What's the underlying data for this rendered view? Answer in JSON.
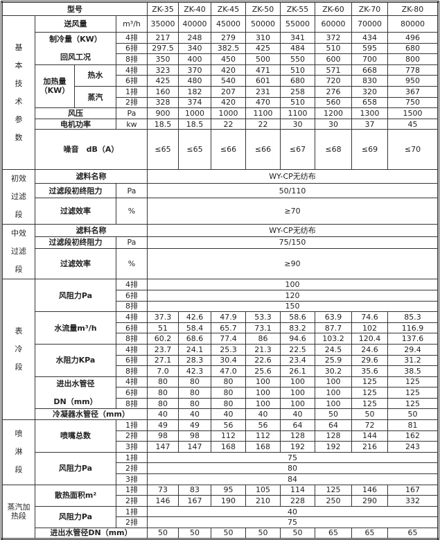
{
  "table": {
    "rows": [
      [
        {
          "t": "型号",
          "cs": 4,
          "b": 1
        },
        {
          "t": "ZK-35"
        },
        {
          "t": "ZK-40"
        },
        {
          "t": "ZK-45"
        },
        {
          "t": "ZK-50"
        },
        {
          "t": "ZK-55"
        },
        {
          "t": "ZK-60"
        },
        {
          "t": "ZK-70"
        },
        {
          "t": "ZK-80"
        }
      ],
      [
        {
          "t": "基\n本\n技\n术\n参\n数",
          "rs": 11,
          "sec": 1
        },
        {
          "t": "送风量",
          "cs": 2,
          "b": 1
        },
        {
          "t": "m³/h"
        },
        {
          "t": "35000"
        },
        {
          "t": "40000"
        },
        {
          "t": "45000"
        },
        {
          "t": "50000"
        },
        {
          "t": "55000"
        },
        {
          "t": "60000"
        },
        {
          "t": "70000"
        },
        {
          "t": "80000"
        }
      ],
      [
        {
          "t": "制冷量（KW）\n\n回风工况",
          "rs": 3,
          "cs": 2,
          "b": 1
        },
        {
          "t": "4排"
        },
        {
          "t": "217"
        },
        {
          "t": "248"
        },
        {
          "t": "279"
        },
        {
          "t": "310"
        },
        {
          "t": "341"
        },
        {
          "t": "372"
        },
        {
          "t": "434"
        },
        {
          "t": "496"
        }
      ],
      [
        {
          "t": "6排"
        },
        {
          "t": "297.5"
        },
        {
          "t": "340"
        },
        {
          "t": "382.5"
        },
        {
          "t": "425"
        },
        {
          "t": "484"
        },
        {
          "t": "510"
        },
        {
          "t": "595"
        },
        {
          "t": "680"
        }
      ],
      [
        {
          "t": "8排"
        },
        {
          "t": "350"
        },
        {
          "t": "400"
        },
        {
          "t": "450"
        },
        {
          "t": "500"
        },
        {
          "t": "550"
        },
        {
          "t": "600"
        },
        {
          "t": "700"
        },
        {
          "t": "800"
        }
      ],
      [
        {
          "t": "加热量\n（KW）",
          "rs": 4,
          "b": 1
        },
        {
          "t": "热水",
          "rs": 2,
          "b": 1
        },
        {
          "t": "4排"
        },
        {
          "t": "323"
        },
        {
          "t": "370"
        },
        {
          "t": "420"
        },
        {
          "t": "471"
        },
        {
          "t": "510"
        },
        {
          "t": "571"
        },
        {
          "t": "668"
        },
        {
          "t": "778"
        }
      ],
      [
        {
          "t": "6排"
        },
        {
          "t": "425"
        },
        {
          "t": "480"
        },
        {
          "t": "540"
        },
        {
          "t": "601"
        },
        {
          "t": "680"
        },
        {
          "t": "720"
        },
        {
          "t": "830"
        },
        {
          "t": "950"
        }
      ],
      [
        {
          "t": "蒸汽",
          "rs": 2,
          "b": 1
        },
        {
          "t": "1排"
        },
        {
          "t": "160"
        },
        {
          "t": "182"
        },
        {
          "t": "207"
        },
        {
          "t": "231"
        },
        {
          "t": "258"
        },
        {
          "t": "276"
        },
        {
          "t": "320"
        },
        {
          "t": "367"
        }
      ],
      [
        {
          "t": "2排"
        },
        {
          "t": "328"
        },
        {
          "t": "374"
        },
        {
          "t": "420"
        },
        {
          "t": "470"
        },
        {
          "t": "510"
        },
        {
          "t": "560"
        },
        {
          "t": "658"
        },
        {
          "t": "750"
        }
      ],
      [
        {
          "t": "风压",
          "cs": 2,
          "b": 1
        },
        {
          "t": "Pa"
        },
        {
          "t": "900"
        },
        {
          "t": "1000"
        },
        {
          "t": "1000"
        },
        {
          "t": "1100"
        },
        {
          "t": "1100"
        },
        {
          "t": "1200"
        },
        {
          "t": "1300"
        },
        {
          "t": "1500"
        }
      ],
      [
        {
          "t": "电机功率",
          "cs": 2,
          "b": 1
        },
        {
          "t": "kw"
        },
        {
          "t": "18.5"
        },
        {
          "t": "18.5"
        },
        {
          "t": "22"
        },
        {
          "t": "22"
        },
        {
          "t": "30"
        },
        {
          "t": "30"
        },
        {
          "t": "37"
        },
        {
          "t": "45"
        }
      ],
      [
        {
          "t": "噪音　dB（A）",
          "cs": 3,
          "b": 1
        },
        {
          "t": "≤65"
        },
        {
          "t": "≤65"
        },
        {
          "t": "≤66"
        },
        {
          "t": "≤66"
        },
        {
          "t": "≤67"
        },
        {
          "t": "≤68"
        },
        {
          "t": "≤69"
        },
        {
          "t": "≤70"
        }
      ],
      [
        {
          "t": "初效\n过滤\n段",
          "rs": 3,
          "sec": 1
        },
        {
          "t": "滤料名称",
          "cs": 3,
          "b": 1
        },
        {
          "t": "WY-CP无纺布",
          "cs": 8
        }
      ],
      [
        {
          "t": "过滤段初终阻力",
          "cs": 2,
          "b": 1
        },
        {
          "t": "Pa"
        },
        {
          "t": "50/110",
          "cs": 8
        }
      ],
      [
        {
          "t": "过滤效率",
          "cs": 2,
          "b": 1
        },
        {
          "t": "%"
        },
        {
          "t": "≥70",
          "cs": 8
        }
      ],
      [
        {
          "t": "中效\n过滤\n段",
          "rs": 3,
          "sec": 1
        },
        {
          "t": "滤料名称",
          "cs": 3,
          "b": 1
        },
        {
          "t": "WY-CP无纺布",
          "cs": 8
        }
      ],
      [
        {
          "t": "过滤段初终阻力",
          "cs": 2,
          "b": 1
        },
        {
          "t": "Pa"
        },
        {
          "t": "75/150",
          "cs": 8
        }
      ],
      [
        {
          "t": "过滤效率",
          "cs": 2,
          "b": 1
        },
        {
          "t": "%"
        },
        {
          "t": "≥90",
          "cs": 8
        }
      ],
      [
        {
          "t": "表\n冷\n段",
          "rs": 13,
          "sec": 1
        },
        {
          "t": "风阻力Pa",
          "rs": 3,
          "cs": 2,
          "b": 1
        },
        {
          "t": "4排"
        },
        {
          "t": "100",
          "cs": 8
        }
      ],
      [
        {
          "t": "6排"
        },
        {
          "t": "120",
          "cs": 8
        }
      ],
      [
        {
          "t": "8排"
        },
        {
          "t": "150",
          "cs": 8
        }
      ],
      [
        {
          "t": "水流量m³/h",
          "rs": 3,
          "cs": 2,
          "b": 1
        },
        {
          "t": "4排"
        },
        {
          "t": "37.3"
        },
        {
          "t": "42.6"
        },
        {
          "t": "47.9"
        },
        {
          "t": "53.3"
        },
        {
          "t": "58.6"
        },
        {
          "t": "63.9"
        },
        {
          "t": "74.6"
        },
        {
          "t": "85.3"
        }
      ],
      [
        {
          "t": "6排"
        },
        {
          "t": "51"
        },
        {
          "t": "58.4"
        },
        {
          "t": "65.7"
        },
        {
          "t": "73.1"
        },
        {
          "t": "83.2"
        },
        {
          "t": "87.7"
        },
        {
          "t": "102"
        },
        {
          "t": "116.9"
        }
      ],
      [
        {
          "t": "8排"
        },
        {
          "t": "60.2"
        },
        {
          "t": "68.6"
        },
        {
          "t": "77.4"
        },
        {
          "t": "86"
        },
        {
          "t": "94.6"
        },
        {
          "t": "103.2"
        },
        {
          "t": "120.4"
        },
        {
          "t": "137.6"
        }
      ],
      [
        {
          "t": "水阻力KPa",
          "rs": 3,
          "cs": 2,
          "b": 1
        },
        {
          "t": "4排"
        },
        {
          "t": "23.7"
        },
        {
          "t": "24.1"
        },
        {
          "t": "25.3"
        },
        {
          "t": "21.3"
        },
        {
          "t": "22.5"
        },
        {
          "t": "24.5"
        },
        {
          "t": "24.6"
        },
        {
          "t": "29.4"
        }
      ],
      [
        {
          "t": "6排"
        },
        {
          "t": "27.1"
        },
        {
          "t": "28.3"
        },
        {
          "t": "30.4"
        },
        {
          "t": "22.6"
        },
        {
          "t": "23.4"
        },
        {
          "t": "25.9"
        },
        {
          "t": "29.6"
        },
        {
          "t": "31.2"
        }
      ],
      [
        {
          "t": "8排"
        },
        {
          "t": "7.0"
        },
        {
          "t": "42.3"
        },
        {
          "t": "47.0"
        },
        {
          "t": "25.6"
        },
        {
          "t": "26.1"
        },
        {
          "t": "30.2"
        },
        {
          "t": "35.6"
        },
        {
          "t": "38.5"
        }
      ],
      [
        {
          "t": "进出水管径\n\nDN（mm）",
          "rs": 3,
          "cs": 2,
          "b": 1
        },
        {
          "t": "4排"
        },
        {
          "t": "80"
        },
        {
          "t": "80"
        },
        {
          "t": "80"
        },
        {
          "t": "100"
        },
        {
          "t": "100"
        },
        {
          "t": "100"
        },
        {
          "t": "125"
        },
        {
          "t": "125"
        }
      ],
      [
        {
          "t": "6排"
        },
        {
          "t": "80"
        },
        {
          "t": "80"
        },
        {
          "t": "80"
        },
        {
          "t": "100"
        },
        {
          "t": "100"
        },
        {
          "t": "100"
        },
        {
          "t": "125"
        },
        {
          "t": "125"
        }
      ],
      [
        {
          "t": "8排"
        },
        {
          "t": "80"
        },
        {
          "t": "80"
        },
        {
          "t": "80"
        },
        {
          "t": "100"
        },
        {
          "t": "100"
        },
        {
          "t": "100"
        },
        {
          "t": "125"
        },
        {
          "t": "125"
        }
      ],
      [
        {
          "t": "冷凝器水管径（mm）",
          "cs": 3,
          "b": 1
        },
        {
          "t": "40"
        },
        {
          "t": "40"
        },
        {
          "t": "40"
        },
        {
          "t": "40"
        },
        {
          "t": "40"
        },
        {
          "t": "50"
        },
        {
          "t": "50"
        },
        {
          "t": "50"
        }
      ],
      [
        {
          "t": "喷\n淋\n段",
          "rs": 6,
          "sec": 1
        },
        {
          "t": "喷嘴总数",
          "rs": 3,
          "cs": 2,
          "b": 1
        },
        {
          "t": "1排"
        },
        {
          "t": "49"
        },
        {
          "t": "49"
        },
        {
          "t": "56"
        },
        {
          "t": "56"
        },
        {
          "t": "64"
        },
        {
          "t": "64"
        },
        {
          "t": "72"
        },
        {
          "t": "81"
        }
      ],
      [
        {
          "t": "2排"
        },
        {
          "t": "98"
        },
        {
          "t": "98"
        },
        {
          "t": "112"
        },
        {
          "t": "112"
        },
        {
          "t": "128"
        },
        {
          "t": "128"
        },
        {
          "t": "144"
        },
        {
          "t": "162"
        }
      ],
      [
        {
          "t": "3排"
        },
        {
          "t": "147"
        },
        {
          "t": "147"
        },
        {
          "t": "168"
        },
        {
          "t": "168"
        },
        {
          "t": "192"
        },
        {
          "t": "192"
        },
        {
          "t": "216"
        },
        {
          "t": "243"
        }
      ],
      [
        {
          "t": "风阻力Pa",
          "rs": 3,
          "cs": 2,
          "b": 1
        },
        {
          "t": "1排"
        },
        {
          "t": "75",
          "cs": 8
        }
      ],
      [
        {
          "t": "2排"
        },
        {
          "t": "80",
          "cs": 8
        }
      ],
      [
        {
          "t": "3排"
        },
        {
          "t": "84",
          "cs": 8
        }
      ],
      [
        {
          "t": "蒸汽加\n热段",
          "rs": 5
        },
        {
          "t": "散热面积m²",
          "rs": 2,
          "cs": 2,
          "b": 1
        },
        {
          "t": "1排"
        },
        {
          "t": "73"
        },
        {
          "t": "83"
        },
        {
          "t": "95"
        },
        {
          "t": "105"
        },
        {
          "t": "114"
        },
        {
          "t": "125"
        },
        {
          "t": "146"
        },
        {
          "t": "167"
        }
      ],
      [
        {
          "t": "2排"
        },
        {
          "t": "146"
        },
        {
          "t": "167"
        },
        {
          "t": "190"
        },
        {
          "t": "210"
        },
        {
          "t": "228"
        },
        {
          "t": "250"
        },
        {
          "t": "290"
        },
        {
          "t": "332"
        }
      ],
      [
        {
          "t": "风阻力Pa",
          "rs": 2,
          "cs": 2,
          "b": 1
        },
        {
          "t": "1排"
        },
        {
          "t": "40",
          "cs": 8
        }
      ],
      [
        {
          "t": "2排"
        },
        {
          "t": "75",
          "cs": 8
        }
      ],
      [
        {
          "t": "进出水管径DN（mm）",
          "cs": 3,
          "b": 1
        },
        {
          "t": "50"
        },
        {
          "t": "50"
        },
        {
          "t": "50"
        },
        {
          "t": "50"
        },
        {
          "t": "50"
        },
        {
          "t": "65"
        },
        {
          "t": "65"
        },
        {
          "t": "65"
        }
      ]
    ]
  }
}
